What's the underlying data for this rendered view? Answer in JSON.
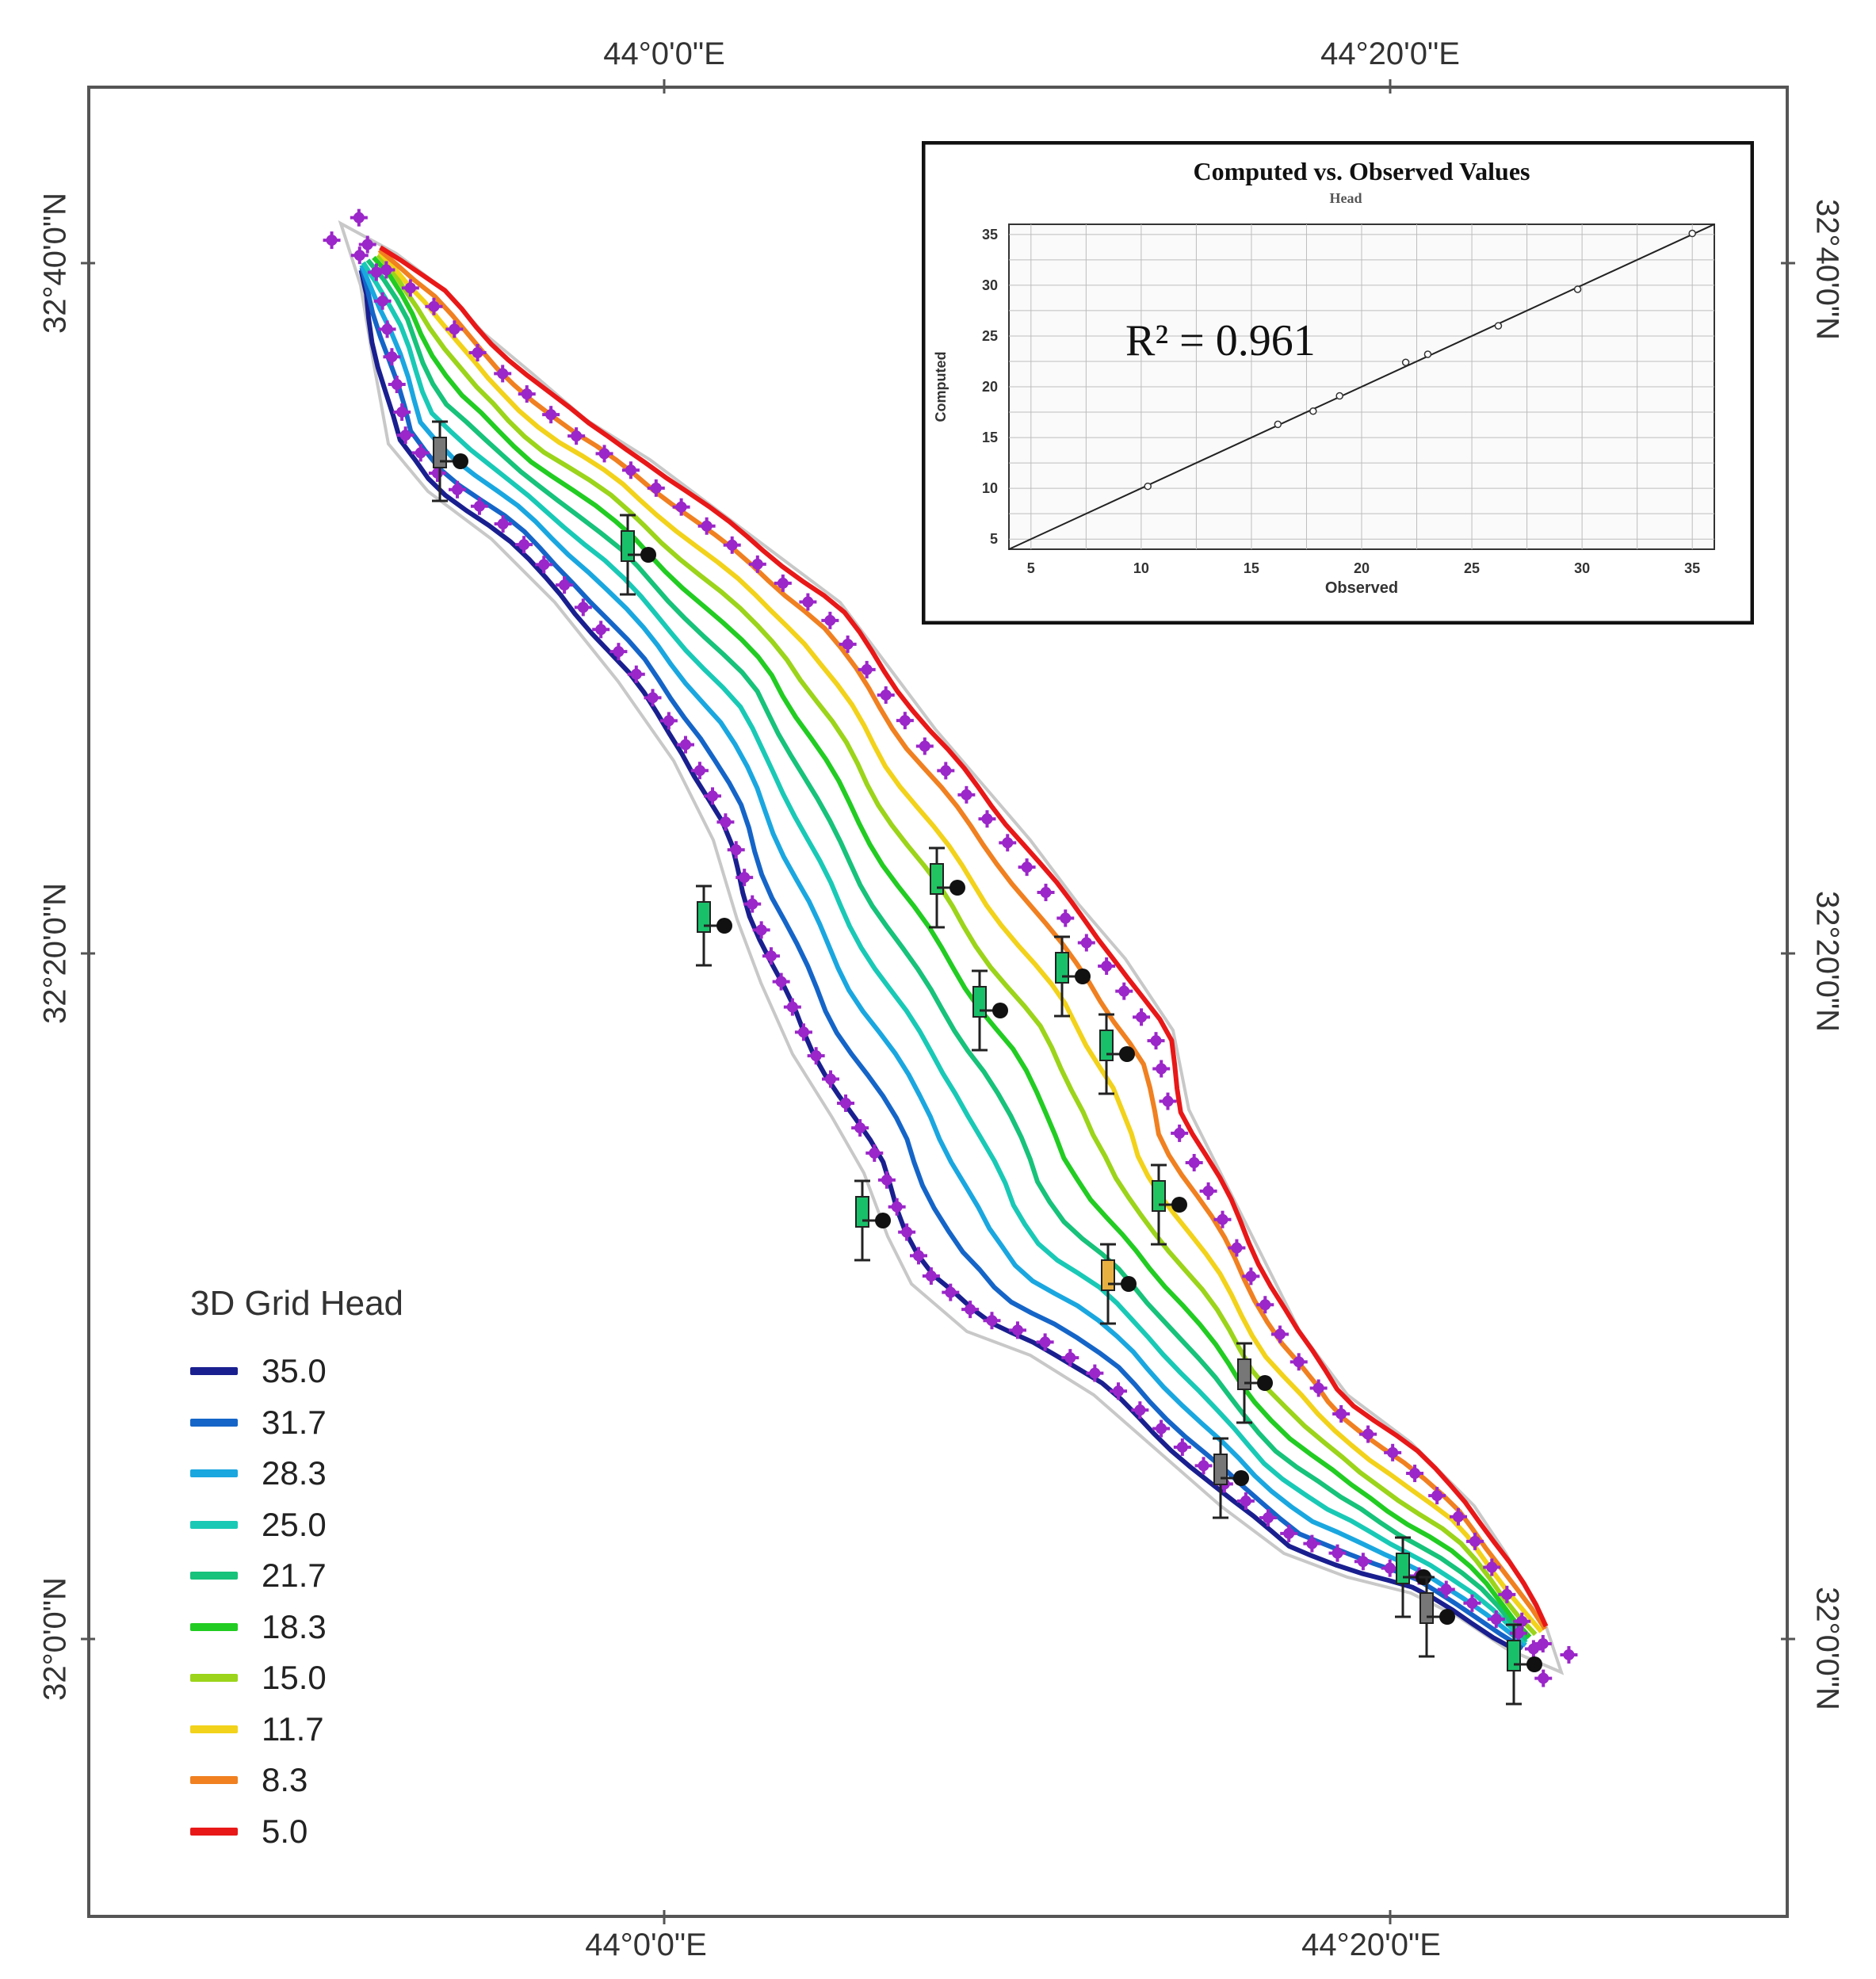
{
  "map": {
    "coordinates": {
      "top": [
        "44°0'0\"E",
        "44°20'0\"E"
      ],
      "bottom": [
        "44°0'0\"E",
        "44°20'0\"E"
      ],
      "left": [
        "32°40'0\"N",
        "32°20'0\"N",
        "32°0'0\"N"
      ],
      "right": [
        "32°40'0\"N",
        "32°20'0\"N",
        "32°0'0\"N"
      ]
    },
    "legend": {
      "title": "3D Grid Head",
      "items": [
        {
          "value": "35.0",
          "color": "#1a1f8f"
        },
        {
          "value": "31.7",
          "color": "#1565c8"
        },
        {
          "value": "28.3",
          "color": "#1aa7e0"
        },
        {
          "value": "25.0",
          "color": "#19c9b6"
        },
        {
          "value": "21.7",
          "color": "#17c27a"
        },
        {
          "value": "18.3",
          "color": "#22cc22"
        },
        {
          "value": "15.0",
          "color": "#9bd41a"
        },
        {
          "value": "11.7",
          "color": "#f2d21a"
        },
        {
          "value": "8.3",
          "color": "#f08020"
        },
        {
          "value": "5.0",
          "color": "#e81818"
        }
      ]
    },
    "boundary_color": "#9b26c9"
  },
  "chart_data": {
    "type": "scatter",
    "title": "Computed vs. Observed Values",
    "subtitle": "Head",
    "xlabel": "Observed",
    "ylabel": "Computed",
    "xlim": [
      4,
      36
    ],
    "ylim": [
      4,
      36
    ],
    "xticks": [
      5,
      10,
      15,
      20,
      25,
      30,
      35
    ],
    "yticks": [
      5,
      10,
      15,
      20,
      25,
      30,
      35
    ],
    "annotation": "R² = 0.961",
    "points": [
      {
        "x": 10.3,
        "y": 10.2
      },
      {
        "x": 16.2,
        "y": 16.3
      },
      {
        "x": 17.8,
        "y": 17.6
      },
      {
        "x": 19.0,
        "y": 19.1
      },
      {
        "x": 22.0,
        "y": 22.4
      },
      {
        "x": 23.0,
        "y": 23.2
      },
      {
        "x": 26.2,
        "y": 26.0
      },
      {
        "x": 29.8,
        "y": 29.6
      },
      {
        "x": 35.0,
        "y": 35.1
      }
    ],
    "reference_line": [
      [
        4,
        4
      ],
      [
        36,
        36
      ]
    ]
  }
}
